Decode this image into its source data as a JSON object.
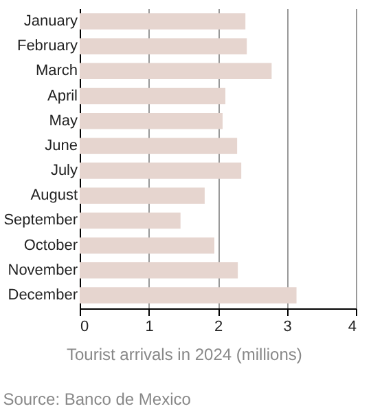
{
  "chart_data": {
    "type": "bar",
    "orientation": "horizontal",
    "categories": [
      "January",
      "February",
      "March",
      "April",
      "May",
      "June",
      "July",
      "August",
      "September",
      "October",
      "November",
      "December"
    ],
    "values": [
      2.4,
      2.42,
      2.78,
      2.11,
      2.07,
      2.28,
      2.34,
      1.81,
      1.46,
      1.95,
      2.29,
      3.14
    ],
    "color": "#e6d5cf",
    "xlim": [
      0,
      4
    ],
    "xticks": [
      0,
      1,
      2,
      3,
      4
    ],
    "grid": "x",
    "xlabel": "Tourist arrivals in 2024 (millions)",
    "annotations": [
      "Source: Banco de Mexico"
    ]
  }
}
